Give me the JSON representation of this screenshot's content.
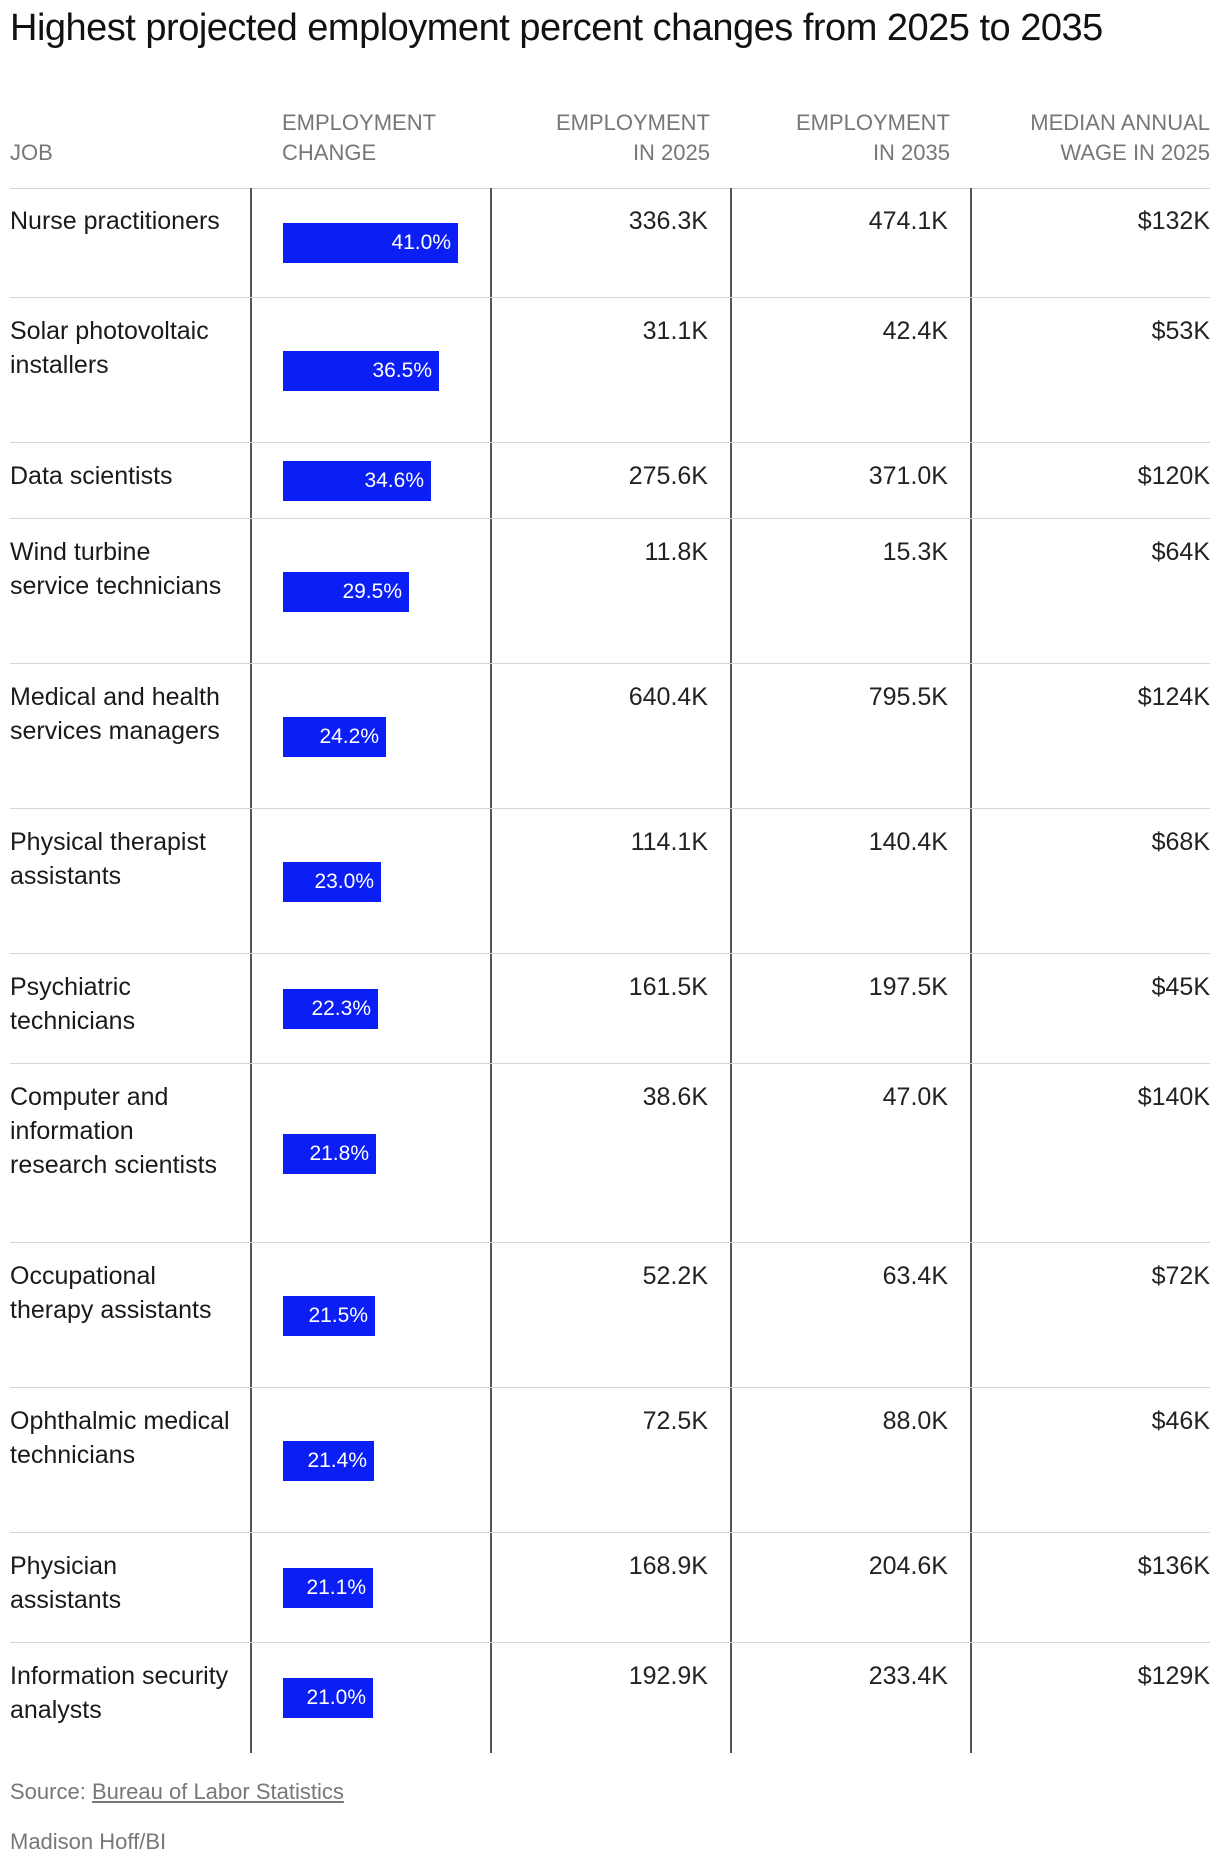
{
  "title": "Highest projected employment percent changes from 2025 to 2035",
  "columns": {
    "job": "JOB",
    "change": [
      "EMPLOYMENT",
      "CHANGE"
    ],
    "emp2025": [
      "EMPLOYMENT",
      "IN 2025"
    ],
    "emp2035": [
      "EMPLOYMENT",
      "IN 2035"
    ],
    "wage": [
      "MEDIAN ANNUAL",
      "WAGE IN 2025"
    ]
  },
  "chart_data": {
    "type": "table",
    "title": "Highest projected employment percent changes from 2025 to 2035",
    "bar_color": "#0a1ef5",
    "bar_scale_max_pct": 41.0,
    "rows": [
      {
        "job": "Nurse practitioners",
        "change_pct": 41.0,
        "change_label": "41.0%",
        "emp2025": "336.3K",
        "emp2035": "474.1K",
        "wage": "$132K"
      },
      {
        "job": "Solar photovoltaic installers",
        "change_pct": 36.5,
        "change_label": "36.5%",
        "emp2025": "31.1K",
        "emp2035": "42.4K",
        "wage": "$53K"
      },
      {
        "job": "Data scientists",
        "change_pct": 34.6,
        "change_label": "34.6%",
        "emp2025": "275.6K",
        "emp2035": "371.0K",
        "wage": "$120K"
      },
      {
        "job": "Wind turbine service technicians",
        "change_pct": 29.5,
        "change_label": "29.5%",
        "emp2025": "11.8K",
        "emp2035": "15.3K",
        "wage": "$64K"
      },
      {
        "job": "Medical and health services managers",
        "change_pct": 24.2,
        "change_label": "24.2%",
        "emp2025": "640.4K",
        "emp2035": "795.5K",
        "wage": "$124K"
      },
      {
        "job": "Physical therapist assistants",
        "change_pct": 23.0,
        "change_label": "23.0%",
        "emp2025": "114.1K",
        "emp2035": "140.4K",
        "wage": "$68K"
      },
      {
        "job": "Psychiatric technicians",
        "change_pct": 22.3,
        "change_label": "22.3%",
        "emp2025": "161.5K",
        "emp2035": "197.5K",
        "wage": "$45K"
      },
      {
        "job": "Computer and information research scientists",
        "change_pct": 21.8,
        "change_label": "21.8%",
        "emp2025": "38.6K",
        "emp2035": "47.0K",
        "wage": "$140K"
      },
      {
        "job": "Occupational therapy assistants",
        "change_pct": 21.5,
        "change_label": "21.5%",
        "emp2025": "52.2K",
        "emp2035": "63.4K",
        "wage": "$72K"
      },
      {
        "job": "Ophthalmic medical technicians",
        "change_pct": 21.4,
        "change_label": "21.4%",
        "emp2025": "72.5K",
        "emp2035": "88.0K",
        "wage": "$46K"
      },
      {
        "job": "Physician assistants",
        "change_pct": 21.1,
        "change_label": "21.1%",
        "emp2025": "168.9K",
        "emp2035": "204.6K",
        "wage": "$136K"
      },
      {
        "job": "Information security analysts",
        "change_pct": 21.0,
        "change_label": "21.0%",
        "emp2025": "192.9K",
        "emp2035": "233.4K",
        "wage": "$129K"
      }
    ]
  },
  "footer": {
    "source_prefix": "Source: ",
    "source_link": "Bureau of Labor Statistics",
    "credit": "Madison Hoff/BI"
  }
}
